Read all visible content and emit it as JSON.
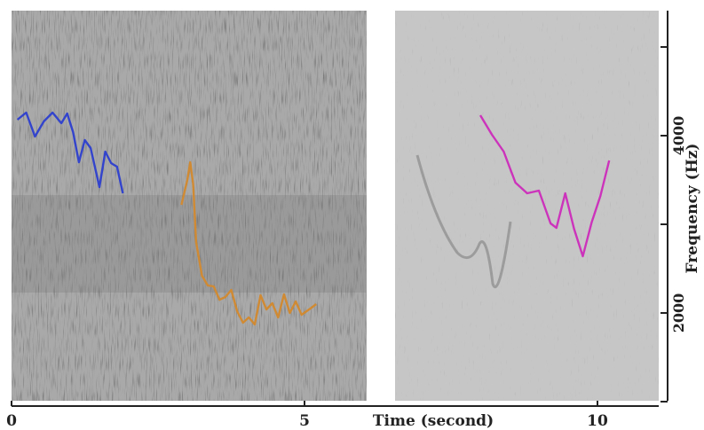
{
  "chart_data": {
    "type": "spectrogram",
    "panels": [
      {
        "name": "left",
        "x_range_seconds": [
          0,
          6.0
        ],
        "contours": [
          {
            "color": "#3344cc",
            "points": [
              [
                0.1,
                4180
              ],
              [
                0.25,
                4260
              ],
              [
                0.4,
                3990
              ],
              [
                0.55,
                4160
              ],
              [
                0.7,
                4260
              ],
              [
                0.85,
                4140
              ],
              [
                0.95,
                4250
              ],
              [
                1.05,
                4040
              ],
              [
                1.15,
                3700
              ],
              [
                1.25,
                3950
              ],
              [
                1.35,
                3860
              ],
              [
                1.5,
                3420
              ],
              [
                1.6,
                3820
              ],
              [
                1.7,
                3690
              ],
              [
                1.8,
                3650
              ],
              [
                1.9,
                3350
              ]
            ]
          },
          {
            "color": "#d08a33",
            "points": [
              [
                2.9,
                3220
              ],
              [
                3.0,
                3500
              ],
              [
                3.05,
                3700
              ],
              [
                3.1,
                3450
              ],
              [
                3.15,
                2800
              ],
              [
                3.25,
                2420
              ],
              [
                3.35,
                2310
              ],
              [
                3.45,
                2300
              ],
              [
                3.55,
                2150
              ],
              [
                3.65,
                2180
              ],
              [
                3.75,
                2260
              ],
              [
                3.85,
                2020
              ],
              [
                3.95,
                1890
              ],
              [
                4.05,
                1950
              ],
              [
                4.15,
                1870
              ],
              [
                4.25,
                2200
              ],
              [
                4.35,
                2040
              ],
              [
                4.45,
                2110
              ],
              [
                4.55,
                1950
              ],
              [
                4.65,
                2210
              ],
              [
                4.75,
                2000
              ],
              [
                4.85,
                2130
              ],
              [
                4.95,
                1980
              ],
              [
                5.1,
                2050
              ],
              [
                5.2,
                2100
              ]
            ]
          }
        ]
      },
      {
        "name": "right",
        "x_range_seconds": [
          6.5,
          13.5
        ],
        "contours": [
          {
            "color": "#cc33bb",
            "points": [
              [
                8.0,
                4230
              ],
              [
                8.2,
                4010
              ],
              [
                8.4,
                3820
              ],
              [
                8.6,
                3470
              ],
              [
                8.8,
                3350
              ],
              [
                9.0,
                3380
              ],
              [
                9.2,
                3010
              ],
              [
                9.3,
                2960
              ],
              [
                9.45,
                3350
              ],
              [
                9.6,
                2950
              ],
              [
                9.75,
                2640
              ],
              [
                9.9,
                3020
              ],
              [
                10.05,
                3320
              ],
              [
                10.2,
                3720
              ]
            ]
          }
        ]
      }
    ],
    "x_axis": {
      "title": "Time (second)",
      "ticks": [
        "0",
        "5",
        "10"
      ],
      "tick_values": [
        0,
        5,
        10
      ]
    },
    "y_axis": {
      "title": "Frequency (Hz)",
      "ticks": [
        "2000",
        "4000"
      ],
      "tick_values": [
        2000,
        4000
      ],
      "range": [
        1000,
        5000
      ],
      "side": "right"
    },
    "grid": false,
    "legend": "none"
  }
}
